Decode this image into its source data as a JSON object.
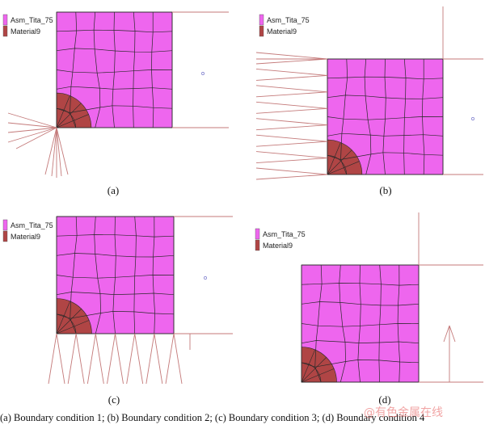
{
  "colors": {
    "material_a": "#ee66ee",
    "material_b": "#b04545",
    "mesh_line": "#2a2a2a",
    "boundary_line": "#c47a7a"
  },
  "panels": [
    {
      "label": "(a)",
      "legend": [
        "Asm_Tita_75",
        "Material9"
      ]
    },
    {
      "label": "(b)",
      "legend": [
        "Asm_Tita_75",
        "Material9"
      ]
    },
    {
      "label": "(c)",
      "legend": [
        "Asm_Tita_75",
        "Material9"
      ]
    },
    {
      "label": "(d)",
      "legend": [
        "Asm_Tita_75",
        "Material9"
      ]
    }
  ],
  "caption": "(a) Boundary condition 1; (b) Boundary condition 2; (c) Boundary condition 3; (d) Boundary condition 4",
  "watermark": "@有色金属在线"
}
